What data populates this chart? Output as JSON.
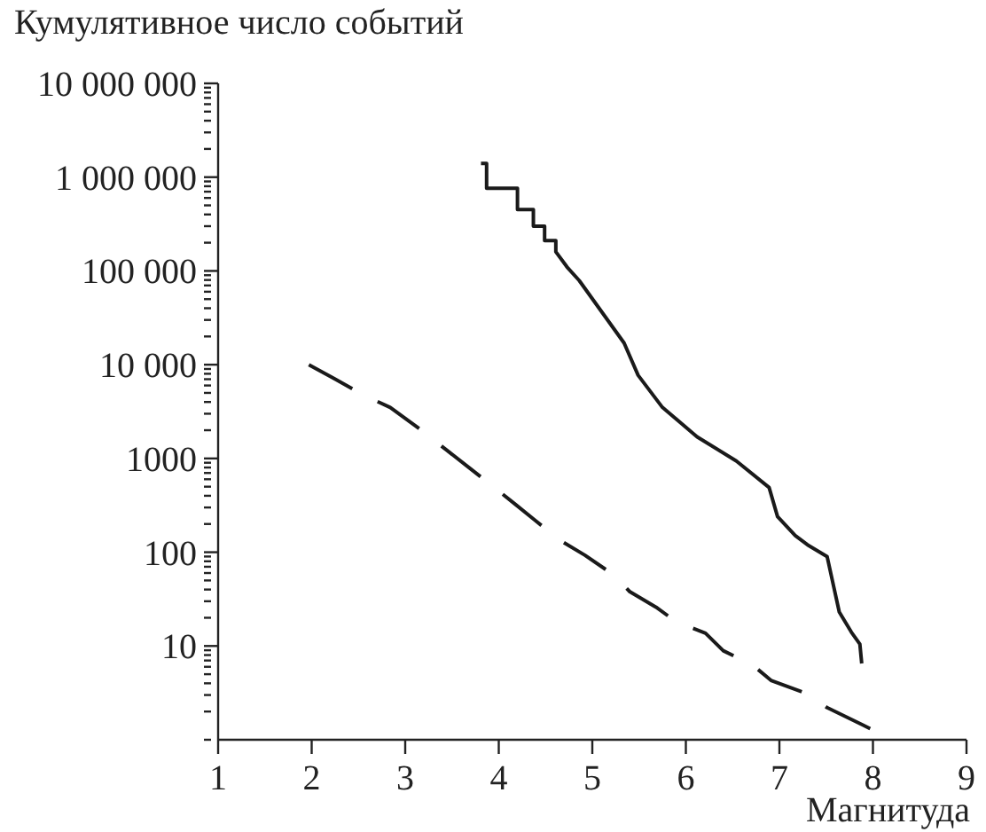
{
  "chart_data": {
    "type": "line",
    "ylabel": "Кумулятивное число событий",
    "xlabel": "Магнитуда",
    "log": "y",
    "marker": "none",
    "xlim": [
      1,
      9
    ],
    "xticks": [
      1,
      2,
      3,
      4,
      5,
      6,
      7,
      8,
      9
    ],
    "ylim": [
      1,
      10000000
    ],
    "yticks": [
      {
        "value": 1,
        "label": null
      },
      {
        "value": 2,
        "label": null
      },
      {
        "value": 3,
        "label": null
      },
      {
        "value": 4,
        "label": null
      },
      {
        "value": 5,
        "label": null
      },
      {
        "value": 6,
        "label": null
      },
      {
        "value": 7,
        "label": null
      },
      {
        "value": 8,
        "label": null
      },
      {
        "value": 9,
        "label": null
      },
      {
        "value": 10,
        "label": "10"
      },
      {
        "value": 20,
        "label": null
      },
      {
        "value": 30,
        "label": null
      },
      {
        "value": 40,
        "label": null
      },
      {
        "value": 50,
        "label": null
      },
      {
        "value": 60,
        "label": null
      },
      {
        "value": 70,
        "label": null
      },
      {
        "value": 80,
        "label": null
      },
      {
        "value": 90,
        "label": null
      },
      {
        "value": 100,
        "label": "100"
      },
      {
        "value": 200,
        "label": null
      },
      {
        "value": 300,
        "label": null
      },
      {
        "value": 400,
        "label": null
      },
      {
        "value": 500,
        "label": null
      },
      {
        "value": 600,
        "label": null
      },
      {
        "value": 700,
        "label": null
      },
      {
        "value": 800,
        "label": null
      },
      {
        "value": 900,
        "label": null
      },
      {
        "value": 1000,
        "label": "1000"
      },
      {
        "value": 2000,
        "label": null
      },
      {
        "value": 3000,
        "label": null
      },
      {
        "value": 4000,
        "label": null
      },
      {
        "value": 5000,
        "label": null
      },
      {
        "value": 6000,
        "label": null
      },
      {
        "value": 7000,
        "label": null
      },
      {
        "value": 8000,
        "label": null
      },
      {
        "value": 9000,
        "label": null
      },
      {
        "value": 10000,
        "label": "10 000"
      },
      {
        "value": 20000,
        "label": null
      },
      {
        "value": 30000,
        "label": null
      },
      {
        "value": 40000,
        "label": null
      },
      {
        "value": 50000,
        "label": null
      },
      {
        "value": 60000,
        "label": null
      },
      {
        "value": 70000,
        "label": null
      },
      {
        "value": 80000,
        "label": null
      },
      {
        "value": 90000,
        "label": null
      },
      {
        "value": 100000,
        "label": "100 000"
      },
      {
        "value": 200000,
        "label": null
      },
      {
        "value": 300000,
        "label": null
      },
      {
        "value": 400000,
        "label": null
      },
      {
        "value": 500000,
        "label": null
      },
      {
        "value": 600000,
        "label": null
      },
      {
        "value": 700000,
        "label": null
      },
      {
        "value": 800000,
        "label": null
      },
      {
        "value": 900000,
        "label": null
      },
      {
        "value": 1000000,
        "label": "1 000 000"
      },
      {
        "value": 2000000,
        "label": null
      },
      {
        "value": 3000000,
        "label": null
      },
      {
        "value": 4000000,
        "label": null
      },
      {
        "value": 5000000,
        "label": null
      },
      {
        "value": 6000000,
        "label": null
      },
      {
        "value": 7000000,
        "label": null
      },
      {
        "value": 8000000,
        "label": null
      },
      {
        "value": 9000000,
        "label": null
      },
      {
        "value": 10000000,
        "label": "10 000 000"
      }
    ],
    "series": [
      {
        "color": "#1a1a1a",
        "line_style": "solid",
        "x": [
          3.81,
          3.87,
          3.87,
          4.2,
          4.2,
          4.37,
          4.37,
          4.49,
          4.49,
          4.61,
          4.61,
          4.73,
          4.86,
          5.34,
          5.49,
          5.75,
          6.12,
          6.54,
          6.89,
          6.98,
          7.17,
          7.3,
          7.51,
          7.64,
          7.77,
          7.86,
          7.88
        ],
        "values": [
          1400000,
          1400000,
          760000,
          760000,
          450000,
          450000,
          300000,
          300000,
          210000,
          210000,
          160000,
          110000,
          79000,
          17000,
          7700,
          3500,
          1700,
          940,
          490,
          240,
          150,
          120,
          90,
          23,
          14,
          10.5,
          6.5
        ]
      },
      {
        "color": "#1a1a1a",
        "line_style": "dashed",
        "x": [
          1.97,
          2.24,
          2.56,
          2.84,
          3.16,
          3.37,
          3.66,
          3.88,
          4.16,
          4.39,
          4.67,
          4.92,
          5.21,
          5.4,
          5.68,
          5.9,
          6.21,
          6.4,
          6.72,
          6.91,
          7.33,
          7.51,
          7.89,
          8.21
        ],
        "values": [
          10000,
          7100,
          4700,
          3500,
          2050,
          1400,
          830,
          560,
          335,
          218,
          131,
          93,
          59,
          38,
          26,
          18,
          13.7,
          8.9,
          6.2,
          4.3,
          3.0,
          2.2,
          1.44,
          1
        ]
      }
    ]
  }
}
